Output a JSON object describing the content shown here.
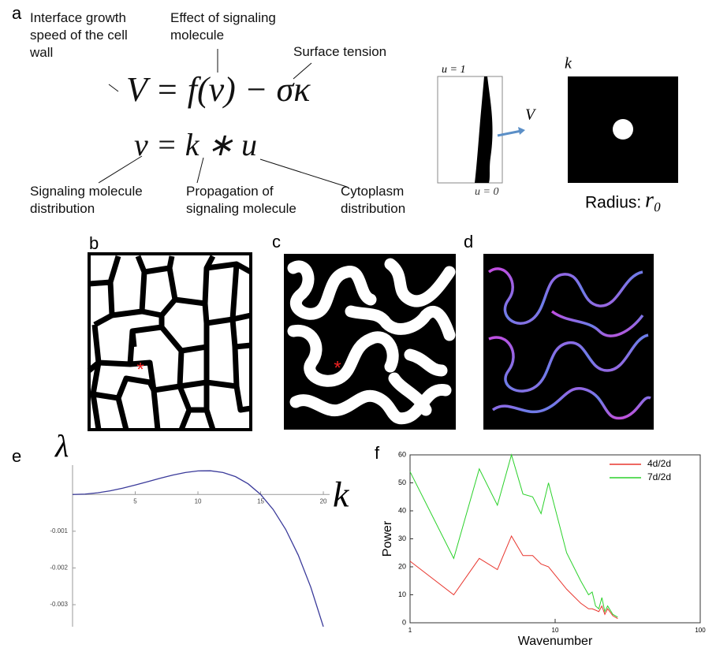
{
  "panel_labels": {
    "a": "a",
    "b": "b",
    "c": "c",
    "d": "d",
    "e": "e",
    "f": "f"
  },
  "panel_a": {
    "interface_label": "Interface growth speed of the cell wall",
    "effect_label": "Effect of signaling molecule",
    "tension_label": "Surface tension",
    "equation_1": "V = f(v) − σκ",
    "equation_2": "v = k ∗ u",
    "distribution_label": "Signaling molecule distribution",
    "propagation_label": "Propagation of signaling molecule",
    "cytoplasm_label": "Cytoplasm distribution",
    "u_top": "u = 1",
    "velocity": "V",
    "u_bottom": "u = 0",
    "kernel": "k",
    "radius_label": "Radius:",
    "radius_symbol": "r₀"
  },
  "panel_b": {
    "marker": "*"
  },
  "panel_c": {
    "marker": "*"
  },
  "chart_data": [
    {
      "type": "line",
      "ylabel": "λ",
      "xlabel": "k",
      "color": "#3a3a9a",
      "x": [
        0,
        1,
        2,
        3,
        4,
        5,
        6,
        7,
        8,
        9,
        10,
        11,
        12,
        13,
        14,
        15,
        16,
        17,
        18,
        19,
        20
      ],
      "values": [
        0,
        1.15e-05,
        4.54e-05,
        9.99e-05,
        0.0001718,
        0.0002569,
        0.0003495,
        0.000443,
        0.0005293,
        0.0005991,
        0.000642,
        0.0006462,
        0.0005988,
        0.0004856,
        0.0002912,
        0,
        -0.0004092,
        -0.000952,
        -0.0016509,
        -0.0025254,
        -0.0035996
      ],
      "xlim": [
        0,
        20.5
      ],
      "ylim": [
        -0.0036,
        0.0008
      ],
      "xticks": [
        5,
        10,
        15,
        20
      ],
      "yticks": [
        -0.001,
        -0.002,
        -0.003
      ]
    },
    {
      "type": "line",
      "xlabel": "Wavenumber",
      "ylabel": "Power",
      "log_x": true,
      "legend": "upper right",
      "x": [
        1,
        2,
        3,
        4,
        5,
        6,
        7,
        8,
        9,
        12,
        15,
        17,
        18,
        19,
        20,
        21,
        22,
        23,
        25,
        27
      ],
      "series": [
        {
          "name": "4d/2d",
          "color": "#e8362e",
          "values": [
            22,
            10,
            23,
            19,
            31,
            24,
            24,
            21,
            20,
            12,
            7,
            5,
            5,
            4.5,
            4,
            6,
            3,
            5,
            2.5,
            1.5
          ]
        },
        {
          "name": "7d/2d",
          "color": "#2bd12b",
          "values": [
            54,
            23,
            55,
            42,
            60,
            46,
            45,
            39,
            50,
            25,
            15,
            10,
            11,
            6,
            5,
            9,
            4,
            6,
            3,
            2
          ]
        }
      ],
      "xlim": [
        1,
        100
      ],
      "ylim": [
        0,
        60
      ],
      "xticks": [
        1,
        10,
        100
      ],
      "yticks": [
        0,
        10,
        20,
        30,
        40,
        50,
        60
      ]
    }
  ]
}
